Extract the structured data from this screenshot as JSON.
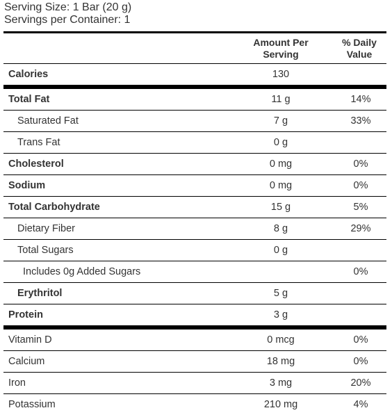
{
  "serving": {
    "size": "Serving Size: 1 Bar (20 g)",
    "per_container": "Servings per Container: 1"
  },
  "headers": {
    "amount_line1": "Amount Per",
    "amount_line2": "Serving",
    "dv_line1": "% Daily",
    "dv_line2": "Value"
  },
  "rows": [
    {
      "label": "Calories",
      "amount": "130",
      "dv": ""
    },
    {
      "label": "Total Fat",
      "amount": "11 g",
      "dv": "14%"
    },
    {
      "label": "Saturated Fat",
      "amount": "7 g",
      "dv": "33%"
    },
    {
      "label": "Trans Fat",
      "amount": "0 g",
      "dv": ""
    },
    {
      "label": "Cholesterol",
      "amount": "0 mg",
      "dv": "0%"
    },
    {
      "label": "Sodium",
      "amount": "0 mg",
      "dv": "0%"
    },
    {
      "label": "Total Carbohydrate",
      "amount": "15 g",
      "dv": "5%"
    },
    {
      "label": "Dietary Fiber",
      "amount": "8 g",
      "dv": "29%"
    },
    {
      "label": "Total Sugars",
      "amount": "0 g",
      "dv": ""
    },
    {
      "label": "Includes 0g Added Sugars",
      "amount": "",
      "dv": "0%"
    },
    {
      "label": "Erythritol",
      "amount": "5 g",
      "dv": ""
    },
    {
      "label": "Protein",
      "amount": "3 g",
      "dv": ""
    },
    {
      "label": "Vitamin D",
      "amount": "0 mcg",
      "dv": "0%"
    },
    {
      "label": "Calcium",
      "amount": "18 mg",
      "dv": "0%"
    },
    {
      "label": "Iron",
      "amount": "3 mg",
      "dv": "20%"
    },
    {
      "label": "Potassium",
      "amount": "210 mg",
      "dv": "4%"
    }
  ]
}
